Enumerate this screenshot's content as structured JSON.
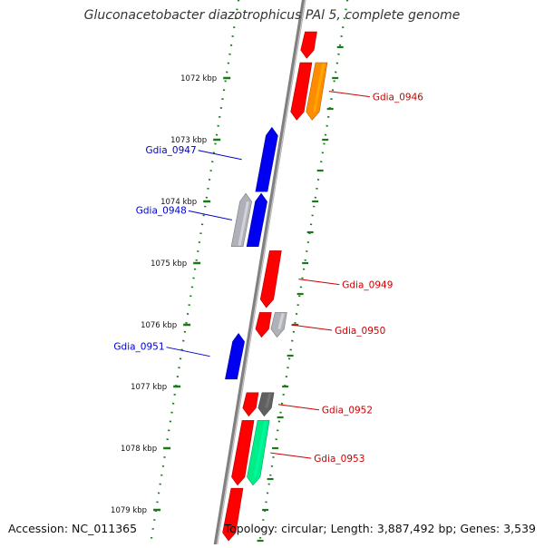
{
  "title": "Gluconacetobacter diazotrophicus PAl 5, complete genome",
  "footer": {
    "accession": "Accession: NC_011365",
    "topology": "Topology: circular; Length: 3,887,492 bp; Genes: 3,539"
  },
  "colors": {
    "forward_gene": "#ff0000",
    "reverse_gene": "#0000ee",
    "rna_gene": "#ff8c00",
    "pseudo_gene": "#b0b0b8",
    "other_gene": "#606060",
    "misc_feature": "#00ee88",
    "backbone": "#808080",
    "ticks": "#1a7a1a"
  },
  "ticks": [
    {
      "kbp": 1072,
      "label": "1072 kbp"
    },
    {
      "kbp": 1073,
      "label": "1073 kbp"
    },
    {
      "kbp": 1074,
      "label": "1074 kbp"
    },
    {
      "kbp": 1075,
      "label": "1075 kbp"
    },
    {
      "kbp": 1076,
      "label": "1076 kbp"
    },
    {
      "kbp": 1077,
      "label": "1077 kbp"
    },
    {
      "kbp": 1078,
      "label": "1078 kbp"
    },
    {
      "kbp": 1079,
      "label": "1079 kbp"
    }
  ],
  "genes": [
    {
      "label": "",
      "strand": "+",
      "lane": 1,
      "start": 1071.25,
      "end": 1071.68,
      "color": "forward_gene"
    },
    {
      "label": "",
      "strand": "+",
      "lane": 1,
      "start": 1071.75,
      "end": 1072.68,
      "color": "forward_gene"
    },
    {
      "label": "Gdia_0946",
      "strand": "+",
      "lane": 2,
      "start": 1071.75,
      "end": 1072.68,
      "color": "rna_gene"
    },
    {
      "label": "Gdia_0947",
      "strand": "-",
      "lane": 1,
      "start": 1072.8,
      "end": 1073.84,
      "color": "reverse_gene"
    },
    {
      "label": "Gdia_0948",
      "strand": "-",
      "lane": 1,
      "start": 1073.87,
      "end": 1074.73,
      "color": "reverse_gene"
    },
    {
      "label": "",
      "strand": "-",
      "lane": 2,
      "start": 1073.87,
      "end": 1074.73,
      "color": "pseudo_gene"
    },
    {
      "label": "Gdia_0949",
      "strand": "+",
      "lane": 1,
      "start": 1074.8,
      "end": 1075.72,
      "color": "forward_gene"
    },
    {
      "label": "",
      "strand": "+",
      "lane": 1,
      "start": 1075.8,
      "end": 1076.2,
      "color": "forward_gene"
    },
    {
      "label": "Gdia_0950",
      "strand": "+",
      "lane": 2,
      "start": 1075.8,
      "end": 1076.2,
      "color": "pseudo_gene"
    },
    {
      "label": "Gdia_0951",
      "strand": "-",
      "lane": 1,
      "start": 1076.14,
      "end": 1076.88,
      "color": "reverse_gene"
    },
    {
      "label": "",
      "strand": "+",
      "lane": 1,
      "start": 1077.1,
      "end": 1077.48,
      "color": "forward_gene"
    },
    {
      "label": "Gdia_0952",
      "strand": "+",
      "lane": 2,
      "start": 1077.1,
      "end": 1077.48,
      "color": "other_gene"
    },
    {
      "label": "",
      "strand": "+",
      "lane": 1,
      "start": 1077.55,
      "end": 1078.6,
      "color": "forward_gene"
    },
    {
      "label": "Gdia_0953",
      "strand": "+",
      "lane": 2,
      "start": 1077.55,
      "end": 1078.6,
      "color": "misc_feature"
    },
    {
      "label": "",
      "strand": "+",
      "lane": 1,
      "start": 1078.65,
      "end": 1079.5,
      "color": "forward_gene"
    }
  ]
}
